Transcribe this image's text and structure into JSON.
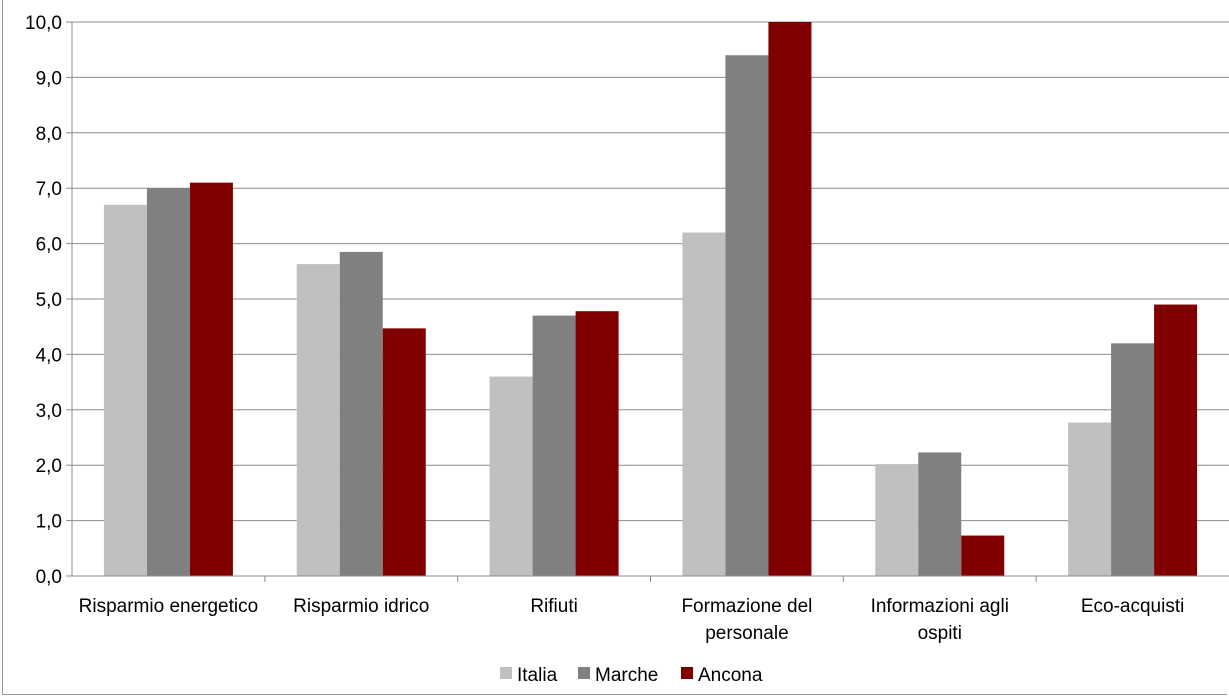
{
  "chart_data": {
    "type": "bar",
    "categories": [
      [
        "Risparmio energetico"
      ],
      [
        "Risparmio idrico"
      ],
      [
        "Rifiuti"
      ],
      [
        "Formazione del",
        "personale"
      ],
      [
        "Informazioni agli",
        "ospiti"
      ],
      [
        "Eco-acquisti"
      ]
    ],
    "series": [
      {
        "name": "Italia",
        "color": "#c0c0c0",
        "values": [
          6.7,
          5.63,
          3.6,
          6.2,
          2.02,
          2.77
        ]
      },
      {
        "name": "Marche",
        "color": "#808080",
        "values": [
          7.0,
          5.85,
          4.7,
          9.4,
          2.23,
          4.2
        ]
      },
      {
        "name": "Ancona",
        "color": "#800000",
        "values": [
          7.1,
          4.47,
          4.78,
          10.0,
          0.73,
          4.9
        ]
      }
    ],
    "ylim": [
      0,
      10
    ],
    "yticks": [
      "0,0",
      "1,0",
      "2,0",
      "3,0",
      "4,0",
      "5,0",
      "6,0",
      "7,0",
      "8,0",
      "9,0",
      "10,0"
    ],
    "grid": true,
    "legend_position": "bottom"
  }
}
